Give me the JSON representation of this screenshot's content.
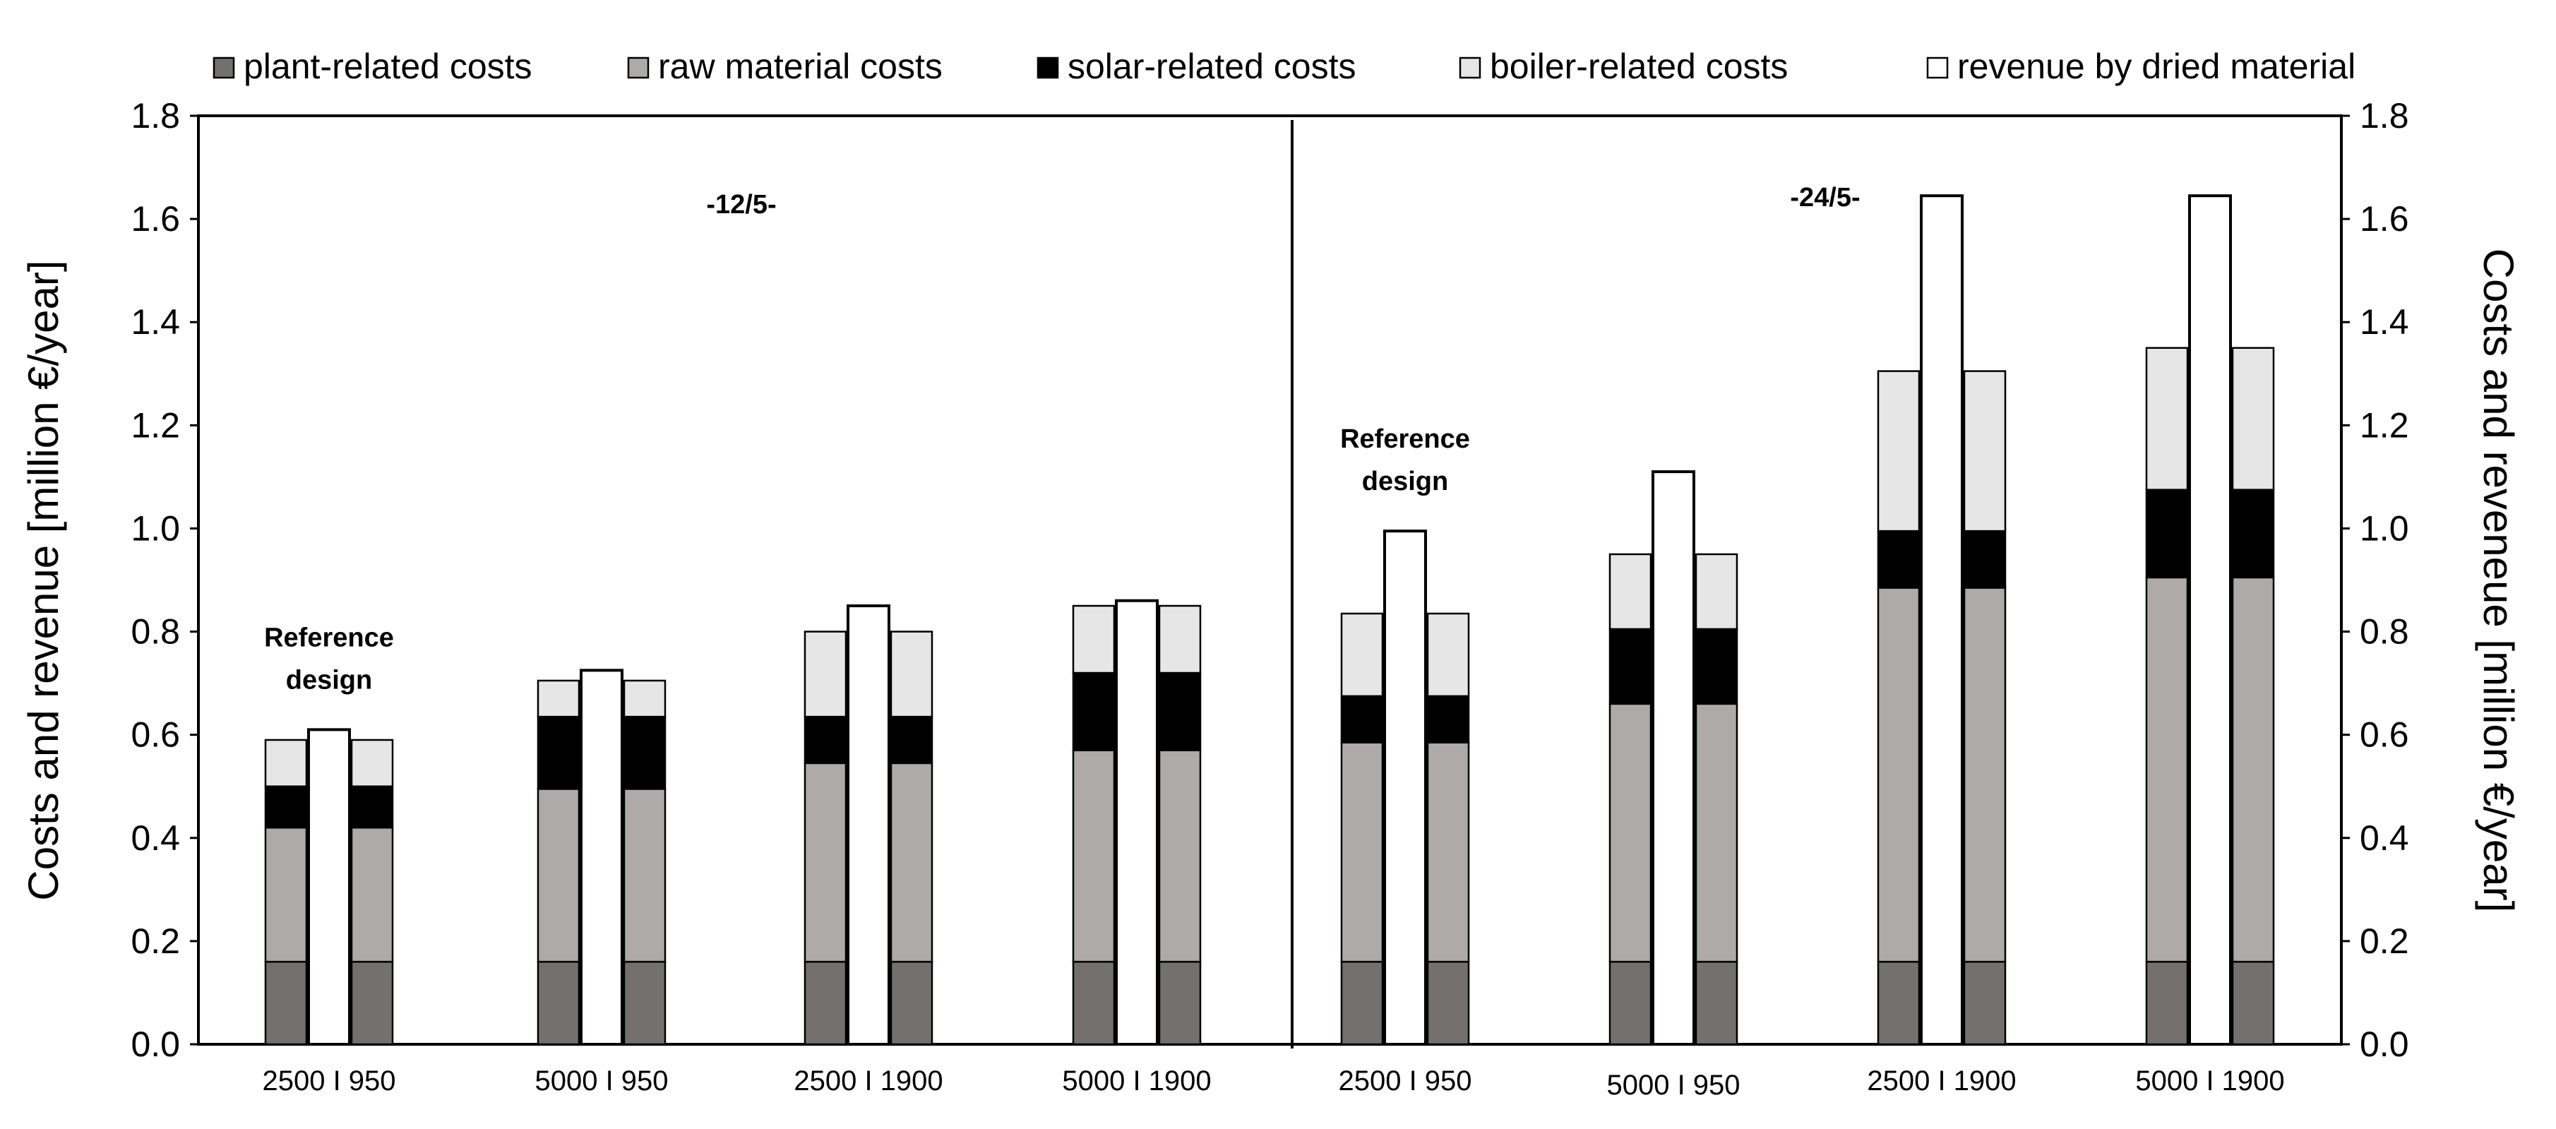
{
  "chart_data": {
    "type": "bar",
    "stacked": true,
    "title": "",
    "ylabel": "Costs and revenue  [million  €/year]",
    "ylabel_right": "Costs and reveneue  [million  €/year]",
    "ylim": [
      0,
      1.8
    ],
    "yticks": [
      "0.0",
      "0.2",
      "0.4",
      "0.6",
      "0.8",
      "1.0",
      "1.2",
      "1.4",
      "1.6",
      "1.8"
    ],
    "legend": [
      {
        "key": "plant",
        "label": "plant-related costs",
        "color": "#747070"
      },
      {
        "key": "raw",
        "label": "raw material costs",
        "color": "#aeaaaa"
      },
      {
        "key": "solar",
        "label": "solar-related costs",
        "color": "#000000"
      },
      {
        "key": "boiler",
        "label": "boiler-related costs",
        "color": "#e7e6e6"
      },
      {
        "key": "revenue",
        "label": "revenue by dried material",
        "color": "#ffffff"
      }
    ],
    "panels": [
      {
        "label": "-12/5-"
      },
      {
        "label": "-24/5-"
      }
    ],
    "categories": [
      "2500 I 950",
      "5000 I 950",
      "2500 I 1900",
      "5000 I 1900",
      "2500 I 950",
      "5000 I 950",
      "2500 I 1900",
      "5000 I 1900"
    ],
    "costs": {
      "plant": [
        0.16,
        0.16,
        0.16,
        0.16,
        0.16,
        0.16,
        0.16,
        0.16
      ],
      "raw": [
        0.26,
        0.335,
        0.385,
        0.41,
        0.425,
        0.5,
        0.725,
        0.745
      ],
      "solar": [
        0.08,
        0.14,
        0.09,
        0.15,
        0.09,
        0.145,
        0.11,
        0.17
      ],
      "boiler": [
        0.09,
        0.07,
        0.165,
        0.13,
        0.16,
        0.145,
        0.31,
        0.275
      ]
    },
    "revenue": [
      0.61,
      0.725,
      0.85,
      0.86,
      0.995,
      1.11,
      1.645,
      1.645
    ],
    "annotations": [
      {
        "text": [
          "Reference",
          "design"
        ],
        "category": 0
      },
      {
        "text": [
          "Reference",
          "design"
        ],
        "category": 4
      }
    ]
  }
}
